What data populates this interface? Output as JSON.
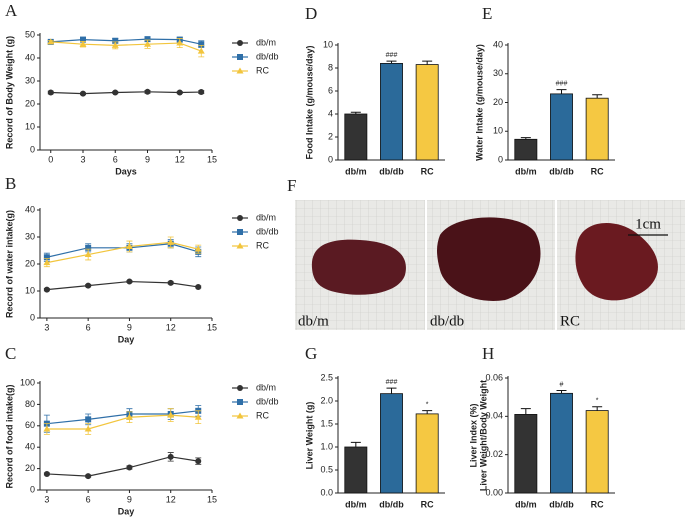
{
  "chart_data": [
    {
      "panel": "A",
      "type": "line",
      "ylabel": "Record of Body Weight (g)",
      "xlabel": "Days",
      "x": [
        0,
        3,
        6,
        9,
        12,
        14
      ],
      "xlim": [
        -1,
        15
      ],
      "xticks": [
        0,
        3,
        6,
        9,
        12,
        15
      ],
      "ylim": [
        0,
        50
      ],
      "yticks": [
        0,
        10,
        20,
        30,
        40,
        50
      ],
      "series": [
        {
          "name": "db/m",
          "color": "#333333",
          "marker": "circle",
          "values": [
            25,
            24.5,
            25,
            25.3,
            25,
            25.2
          ],
          "errors": [
            0.6,
            0.4,
            0.4,
            0.6,
            0.4,
            0.6
          ]
        },
        {
          "name": "db/db",
          "color": "#2f6fa8",
          "marker": "square",
          "values": [
            47,
            48,
            47.5,
            48.2,
            48,
            46
          ],
          "errors": [
            0.6,
            1,
            1,
            1,
            1,
            1.5
          ]
        },
        {
          "name": "RC",
          "color": "#f2c53d",
          "marker": "triangle",
          "values": [
            47,
            46,
            45.5,
            46,
            46.5,
            43
          ],
          "errors": [
            0.6,
            1.2,
            1.5,
            1.8,
            2,
            2.5
          ]
        }
      ]
    },
    {
      "panel": "B",
      "type": "line",
      "ylabel": "Record of water intake(g)",
      "xlabel": "Day",
      "x": [
        3,
        6,
        9,
        12,
        14
      ],
      "xlim": [
        2.5,
        15
      ],
      "xticks": [
        3,
        6,
        9,
        12,
        15
      ],
      "ylim": [
        0,
        40
      ],
      "yticks": [
        0,
        10,
        20,
        30,
        40
      ],
      "series": [
        {
          "name": "db/m",
          "color": "#333333",
          "marker": "circle",
          "values": [
            10.5,
            12,
            13.5,
            13,
            11.5
          ],
          "errors": [
            0.4,
            0.4,
            0.4,
            0.4,
            0.4
          ]
        },
        {
          "name": "db/db",
          "color": "#2f6fa8",
          "marker": "square",
          "values": [
            22.5,
            26,
            26,
            27.5,
            24.5
          ],
          "errors": [
            1.5,
            1.5,
            1.5,
            1.5,
            1.8
          ]
        },
        {
          "name": "RC",
          "color": "#f2c53d",
          "marker": "triangle",
          "values": [
            20.5,
            23.5,
            26.5,
            28,
            25.5
          ],
          "errors": [
            1.5,
            2,
            2,
            2,
            1.5
          ]
        }
      ]
    },
    {
      "panel": "C",
      "type": "line",
      "ylabel": "Record of food intake(g)",
      "xlabel": "Day",
      "x": [
        3,
        6,
        9,
        12,
        14
      ],
      "xlim": [
        2.5,
        15
      ],
      "xticks": [
        3,
        6,
        9,
        12,
        15
      ],
      "ylim": [
        0,
        100
      ],
      "yticks": [
        0,
        20,
        40,
        60,
        80,
        100
      ],
      "series": [
        {
          "name": "db/m",
          "color": "#333333",
          "marker": "circle",
          "values": [
            15,
            13,
            21,
            31,
            27
          ],
          "errors": [
            1,
            1,
            1.5,
            4,
            3
          ]
        },
        {
          "name": "db/db",
          "color": "#2f6fa8",
          "marker": "square",
          "values": [
            62,
            66,
            71,
            71,
            74
          ],
          "errors": [
            8,
            5,
            5,
            5,
            5
          ]
        },
        {
          "name": "RC",
          "color": "#f2c53d",
          "marker": "triangle",
          "values": [
            57,
            57,
            68,
            70,
            68
          ],
          "errors": [
            5,
            5,
            5,
            6,
            6
          ]
        }
      ]
    },
    {
      "panel": "D",
      "type": "bar",
      "ylabel": "Food Intake  (g/mouse/day)",
      "categories": [
        "db/m",
        "db/db",
        "RC"
      ],
      "values": [
        4.0,
        8.4,
        8.3
      ],
      "errors": [
        0.15,
        0.2,
        0.3
      ],
      "colors": [
        "#333333",
        "#2b6a9a",
        "#f5c842"
      ],
      "annotations": [
        null,
        "###",
        null
      ],
      "ylim": [
        0,
        10
      ],
      "yticks": [
        0,
        2,
        4,
        6,
        8,
        10
      ]
    },
    {
      "panel": "E",
      "type": "bar",
      "ylabel": "Water Intake  (g/mouse/day)",
      "categories": [
        "db/m",
        "db/db",
        "RC"
      ],
      "values": [
        7.2,
        23,
        21.5
      ],
      "errors": [
        0.6,
        1.5,
        1.2
      ],
      "colors": [
        "#333333",
        "#2b6a9a",
        "#f5c842"
      ],
      "annotations": [
        null,
        "###",
        null
      ],
      "ylim": [
        0,
        40
      ],
      "yticks": [
        0,
        10,
        20,
        30,
        40
      ]
    },
    {
      "panel": "G",
      "type": "bar",
      "ylabel": "Liver Weight  (g)",
      "categories": [
        "db/m",
        "db/db",
        "RC"
      ],
      "values": [
        1.0,
        2.16,
        1.72
      ],
      "errors": [
        0.1,
        0.12,
        0.07
      ],
      "colors": [
        "#333333",
        "#2b6a9a",
        "#f5c842"
      ],
      "annotations": [
        null,
        "###",
        "*"
      ],
      "ylim": [
        0,
        2.5
      ],
      "yticks": [
        {
          "value": 0,
          "label": "0.0"
        },
        0.5,
        {
          "value": 1,
          "label": "1.0"
        },
        1.5,
        {
          "value": 2,
          "label": "2.0"
        },
        2.5
      ]
    },
    {
      "panel": "H",
      "type": "bar",
      "ylabel": [
        "Liver Index  (%)",
        "Liver Weight/Body Weight"
      ],
      "categories": [
        "db/m",
        "db/db",
        "RC"
      ],
      "values": [
        0.041,
        0.052,
        0.043
      ],
      "errors": [
        0.003,
        0.0015,
        0.002
      ],
      "colors": [
        "#333333",
        "#2b6a9a",
        "#f5c842"
      ],
      "annotations": [
        null,
        "#",
        "*"
      ],
      "ylim": [
        0,
        0.06
      ],
      "yticks": [
        {
          "value": 0,
          "label": "0.00"
        },
        0.02,
        0.04,
        0.06
      ]
    }
  ],
  "photo": {
    "panel": "F",
    "labels": [
      "db/m",
      "db/db",
      "RC"
    ],
    "scale": "1cm"
  }
}
